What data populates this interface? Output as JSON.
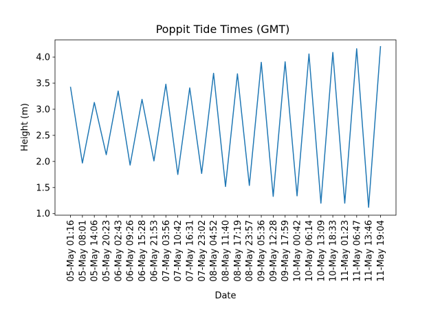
{
  "chart_data": {
    "type": "line",
    "title": "Poppit Tide Times (GMT)",
    "xlabel": "Date",
    "ylabel": "Height (m)",
    "ylim": [
      0.97,
      4.33
    ],
    "yticks": [
      1.0,
      1.5,
      2.0,
      2.5,
      3.0,
      3.5,
      4.0
    ],
    "ytick_labels": [
      "1.0",
      "1.5",
      "2.0",
      "2.5",
      "3.0",
      "3.5",
      "4.0"
    ],
    "grid": false,
    "line_color": "#1f77b4",
    "categories": [
      "05-May 01:16",
      "05-May 08:01",
      "05-May 14:06",
      "05-May 20:23",
      "06-May 02:43",
      "06-May 09:26",
      "06-May 15:28",
      "06-May 21:53",
      "07-May 03:56",
      "07-May 10:42",
      "07-May 16:31",
      "07-May 23:02",
      "08-May 04:52",
      "08-May 11:40",
      "08-May 17:19",
      "08-May 23:57",
      "09-May 05:36",
      "09-May 12:28",
      "09-May 17:59",
      "10-May 00:42",
      "10-May 06:14",
      "10-May 13:09",
      "10-May 18:33",
      "11-May 01:23",
      "11-May 06:47",
      "11-May 13:46",
      "11-May 19:04"
    ],
    "series": [
      {
        "values": [
          3.43,
          1.97,
          3.13,
          2.13,
          3.35,
          1.93,
          3.19,
          2.01,
          3.48,
          1.75,
          3.41,
          1.77,
          3.69,
          1.52,
          3.68,
          1.54,
          3.9,
          1.33,
          3.91,
          1.34,
          4.06,
          1.2,
          4.09,
          1.2,
          4.16,
          1.12,
          4.21
        ]
      }
    ]
  }
}
